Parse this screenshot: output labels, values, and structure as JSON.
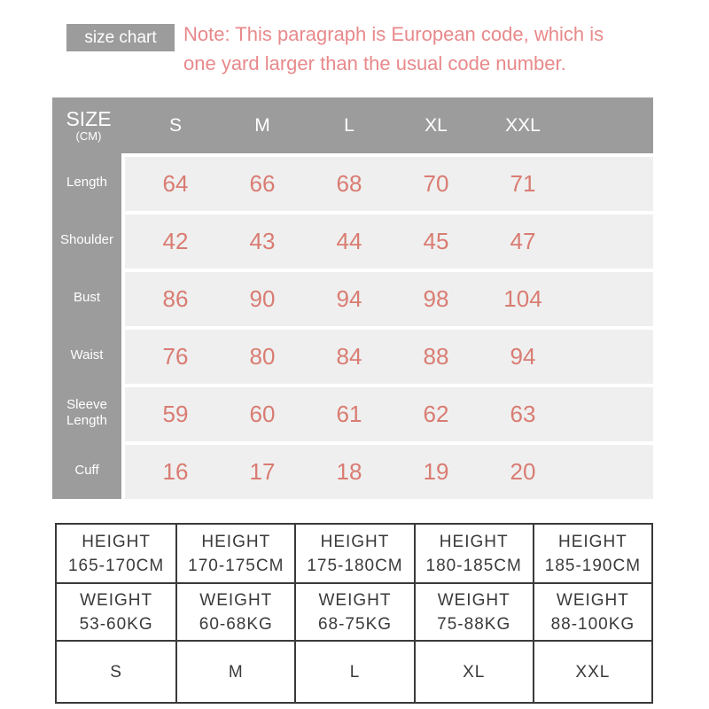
{
  "banner": {
    "badge_label": "size chart"
  },
  "colors": {
    "header_gray": "#9c9c9c",
    "row_background": "#efefef",
    "value_coral": "#d97c72",
    "note_pink": "#e8898b",
    "border_dark": "#3a3a3a"
  },
  "chart_data": [
    {
      "type": "table",
      "title": "size chart",
      "note_lines": [
        "Note: This paragraph is European code, which is",
        "one yard larger than the usual code number."
      ],
      "corner": {
        "label": "SIZE",
        "unit": "(CM)"
      },
      "columns": [
        "S",
        "M",
        "L",
        "XL",
        "XXL"
      ],
      "rows": [
        {
          "label": "Length",
          "values": [
            "64",
            "66",
            "68",
            "70",
            "71"
          ]
        },
        {
          "label": "Shoulder",
          "values": [
            "42",
            "43",
            "44",
            "45",
            "47"
          ]
        },
        {
          "label": "Bust",
          "values": [
            "86",
            "90",
            "94",
            "98",
            "104"
          ]
        },
        {
          "label": "Waist",
          "values": [
            "76",
            "80",
            "84",
            "88",
            "94"
          ]
        },
        {
          "label": "Sleeve Length",
          "values": [
            "59",
            "60",
            "61",
            "62",
            "63"
          ]
        },
        {
          "label": "Cuff",
          "values": [
            "16",
            "17",
            "18",
            "19",
            "20"
          ]
        }
      ]
    },
    {
      "type": "table",
      "height_row": [
        {
          "label": "HEIGHT",
          "value": "165-170CM"
        },
        {
          "label": "HEIGHT",
          "value": "170-175CM"
        },
        {
          "label": "HEIGHT",
          "value": "175-180CM"
        },
        {
          "label": "HEIGHT",
          "value": "180-185CM"
        },
        {
          "label": "HEIGHT",
          "value": "185-190CM"
        }
      ],
      "weight_row": [
        {
          "label": "WEIGHT",
          "value": "53-60KG"
        },
        {
          "label": "WEIGHT",
          "value": "60-68KG"
        },
        {
          "label": "WEIGHT",
          "value": "68-75KG"
        },
        {
          "label": "WEIGHT",
          "value": "75-88KG"
        },
        {
          "label": "WEIGHT",
          "value": "88-100KG"
        }
      ],
      "size_row": [
        "S",
        "M",
        "L",
        "XL",
        "XXL"
      ]
    }
  ]
}
